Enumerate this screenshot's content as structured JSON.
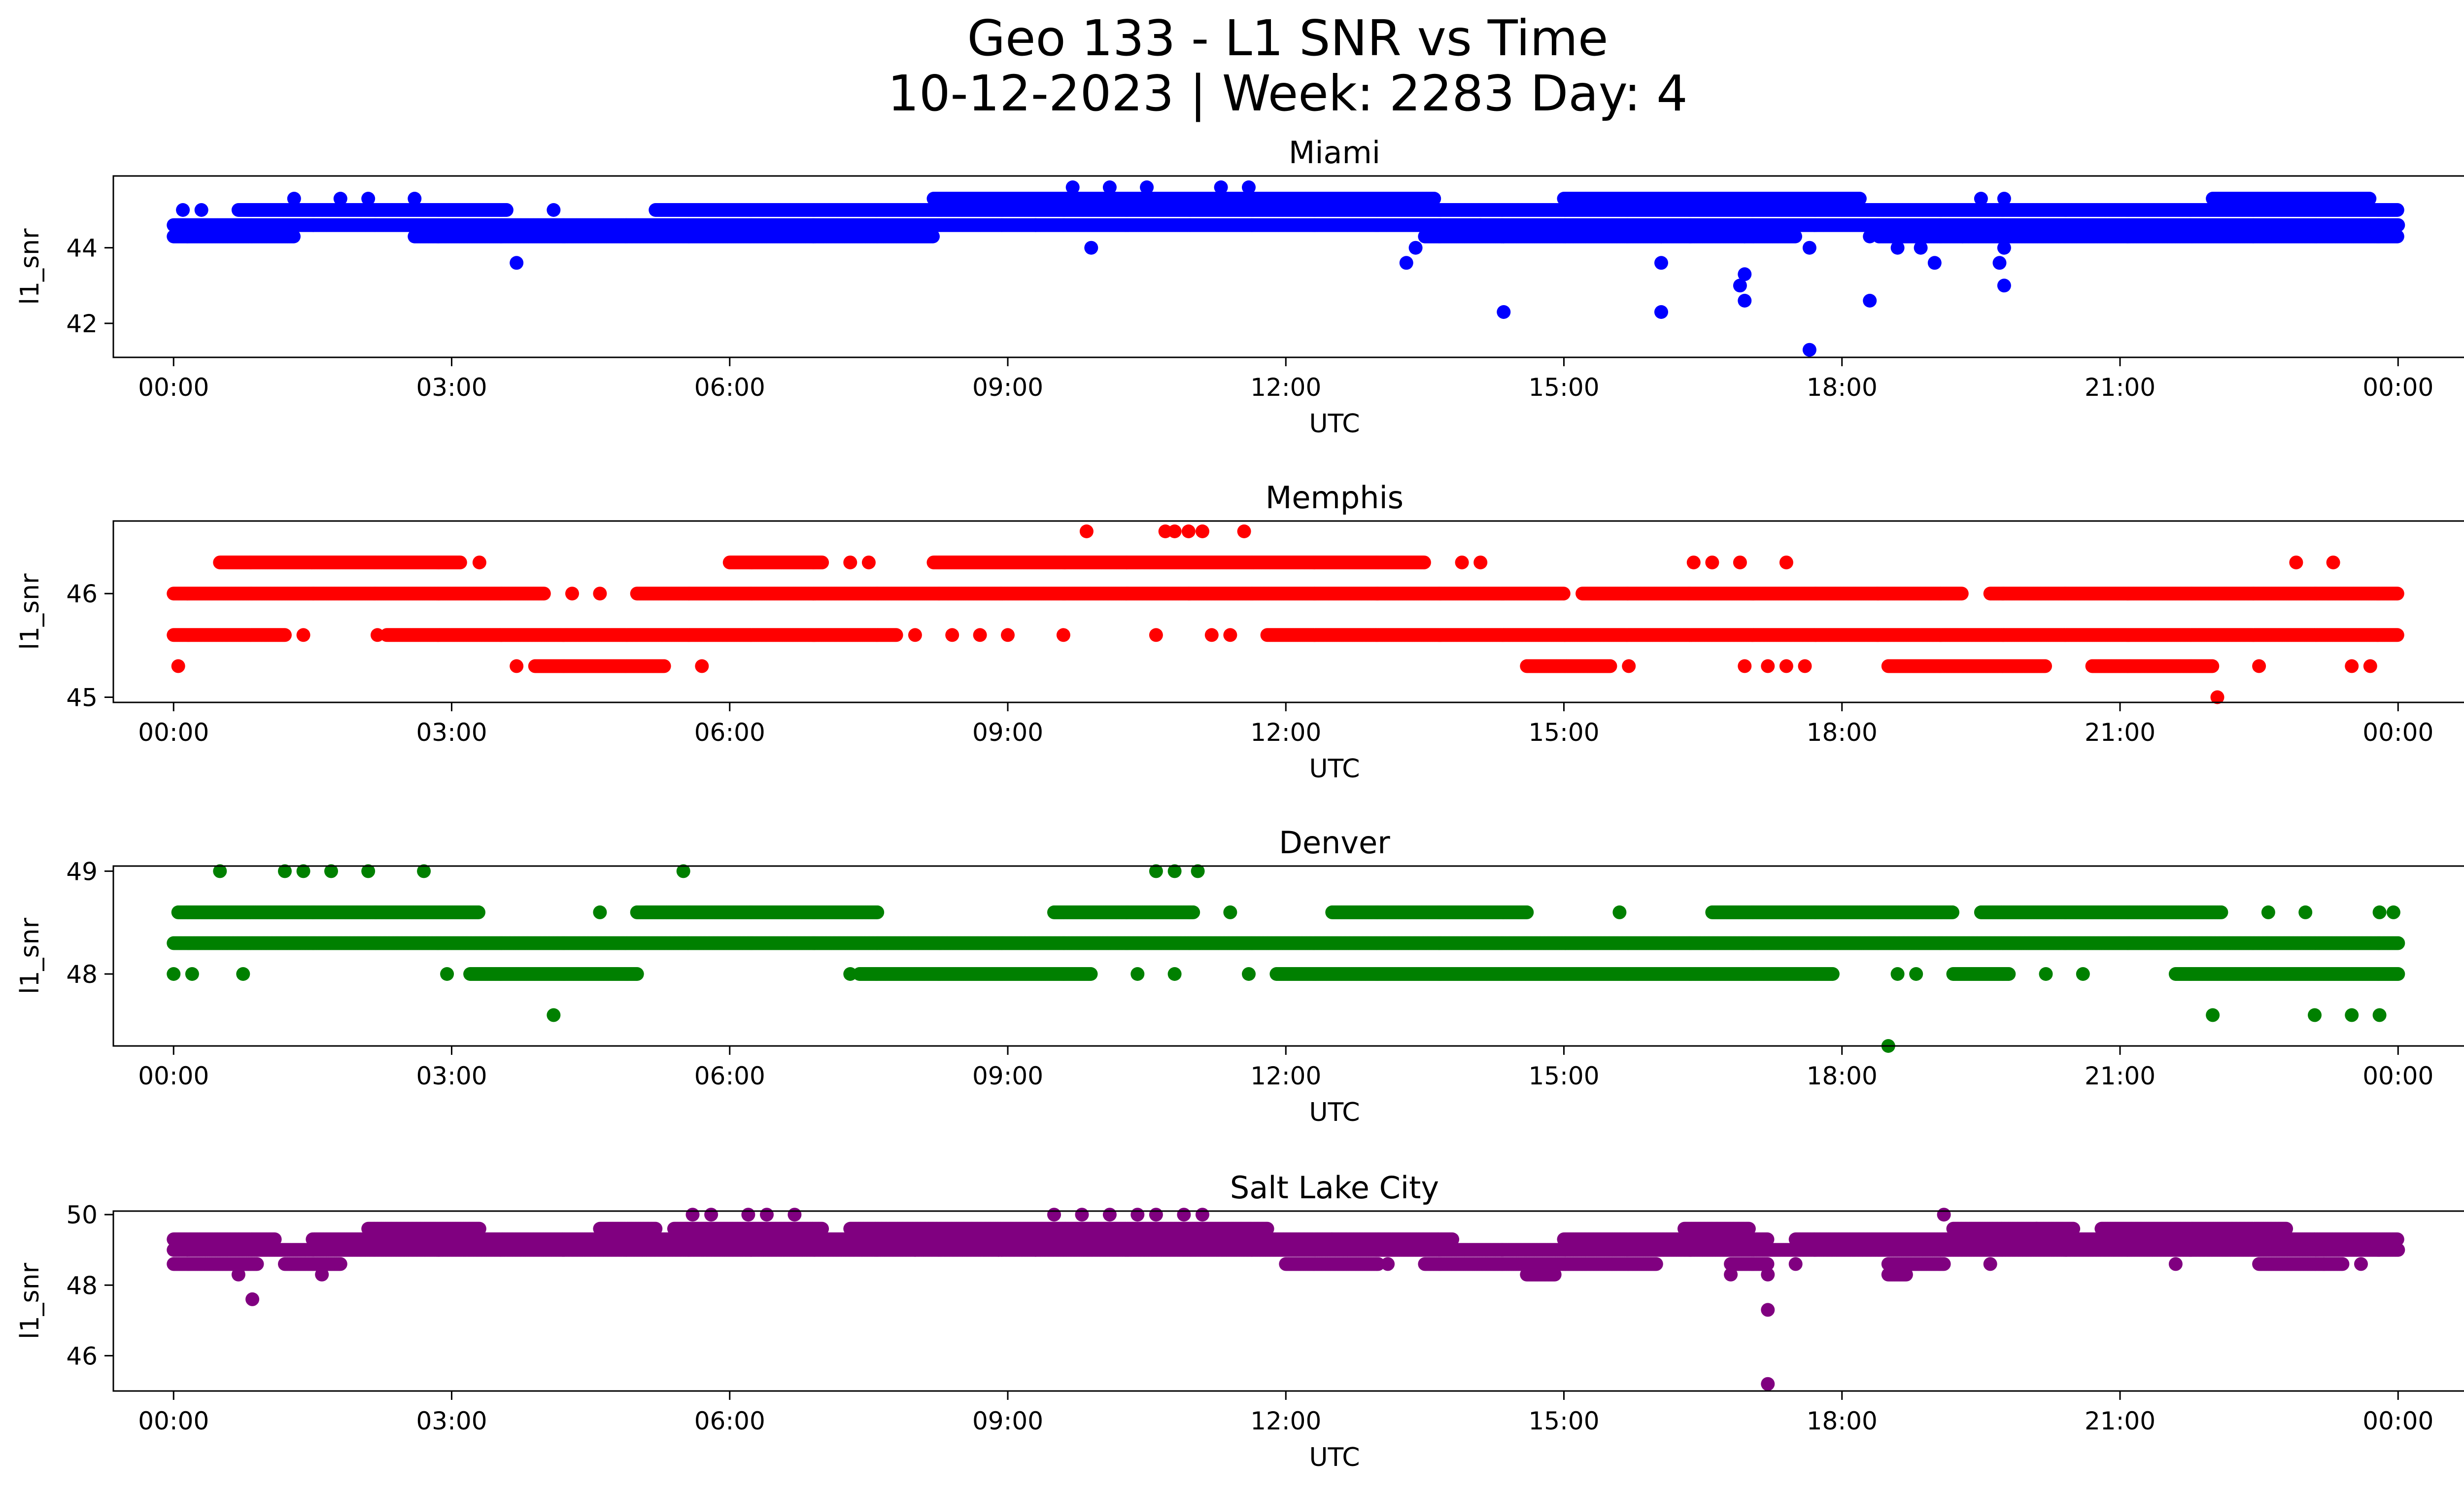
{
  "figure": {
    "title_line1": "Geo 133 - L1 SNR vs Time",
    "title_line2": "10-12-2023 | Week: 2283 Day: 4"
  },
  "chart_data": [
    {
      "type": "scatter",
      "title": "Miami",
      "xlabel": "UTC",
      "ylabel": "l1_snr",
      "color": "#0000ff",
      "x_unit": "hours",
      "xlim": [
        -0.65,
        25.7
      ],
      "ylim": [
        41.1,
        45.9
      ],
      "x_ticks": [
        0,
        3,
        6,
        9,
        12,
        15,
        18,
        21,
        24
      ],
      "x_tick_labels": [
        "00:00",
        "03:00",
        "06:00",
        "09:00",
        "12:00",
        "15:00",
        "18:00",
        "21:00",
        "00:00"
      ],
      "y_ticks": [
        42,
        44
      ],
      "y_tick_labels": [
        "42",
        "44"
      ],
      "bands": [
        {
          "y": 44.3,
          "segments": [
            [
              0,
              1.3
            ],
            [
              2.6,
              8.2
            ],
            [
              13.5,
              17.5
            ],
            [
              18.4,
              24
            ]
          ]
        },
        {
          "y": 44.6,
          "segments": [
            [
              0,
              24
            ]
          ]
        },
        {
          "y": 45.0,
          "segments": [
            [
              0.7,
              3.6
            ],
            [
              5.2,
              24
            ]
          ]
        },
        {
          "y": 45.3,
          "segments": [
            [
              8.2,
              13.6
            ],
            [
              15.0,
              18.2
            ],
            [
              22.0,
              23.7
            ]
          ]
        }
      ],
      "points": [
        {
          "x": 0.1,
          "y": 45.0
        },
        {
          "x": 0.3,
          "y": 45.0
        },
        {
          "x": 1.3,
          "y": 45.3
        },
        {
          "x": 1.8,
          "y": 45.3
        },
        {
          "x": 2.1,
          "y": 45.3
        },
        {
          "x": 2.6,
          "y": 45.3
        },
        {
          "x": 3.7,
          "y": 43.6
        },
        {
          "x": 4.1,
          "y": 45.0
        },
        {
          "x": 9.3,
          "y": 44.6
        },
        {
          "x": 9.7,
          "y": 45.6
        },
        {
          "x": 9.9,
          "y": 44.0
        },
        {
          "x": 10.1,
          "y": 45.6
        },
        {
          "x": 10.5,
          "y": 45.6
        },
        {
          "x": 11.3,
          "y": 45.6
        },
        {
          "x": 11.6,
          "y": 45.6
        },
        {
          "x": 13.3,
          "y": 43.6
        },
        {
          "x": 13.4,
          "y": 44.0
        },
        {
          "x": 14.1,
          "y": 44.6
        },
        {
          "x": 14.35,
          "y": 44.3
        },
        {
          "x": 14.35,
          "y": 42.3
        },
        {
          "x": 16.05,
          "y": 44.3
        },
        {
          "x": 16.05,
          "y": 43.6
        },
        {
          "x": 16.05,
          "y": 42.3
        },
        {
          "x": 16.9,
          "y": 43.0
        },
        {
          "x": 16.95,
          "y": 43.3
        },
        {
          "x": 16.95,
          "y": 42.6
        },
        {
          "x": 16.95,
          "y": 44.3
        },
        {
          "x": 17.65,
          "y": 44.0
        },
        {
          "x": 17.65,
          "y": 41.3
        },
        {
          "x": 18.3,
          "y": 42.6
        },
        {
          "x": 18.3,
          "y": 44.3
        },
        {
          "x": 18.6,
          "y": 44.0
        },
        {
          "x": 18.85,
          "y": 44.0
        },
        {
          "x": 19.0,
          "y": 43.6
        },
        {
          "x": 19.3,
          "y": 44.3
        },
        {
          "x": 19.7,
          "y": 44.3
        },
        {
          "x": 19.7,
          "y": 43.6
        },
        {
          "x": 19.75,
          "y": 43.0
        },
        {
          "x": 19.75,
          "y": 44.0
        },
        {
          "x": 19.75,
          "y": 45.3
        },
        {
          "x": 19.5,
          "y": 45.3
        }
      ]
    },
    {
      "type": "scatter",
      "title": "Memphis",
      "xlabel": "UTC",
      "ylabel": "l1_snr",
      "color": "#ff0000",
      "x_unit": "hours",
      "xlim": [
        -0.65,
        25.7
      ],
      "ylim": [
        44.95,
        46.7
      ],
      "x_ticks": [
        0,
        3,
        6,
        9,
        12,
        15,
        18,
        21,
        24
      ],
      "x_tick_labels": [
        "00:00",
        "03:00",
        "06:00",
        "09:00",
        "12:00",
        "15:00",
        "18:00",
        "21:00",
        "00:00"
      ],
      "y_ticks": [
        45,
        46
      ],
      "y_tick_labels": [
        "45",
        "46"
      ],
      "bands": [
        {
          "y": 46.3,
          "segments": [
            [
              0.5,
              3.1
            ],
            [
              6.0,
              7.0
            ],
            [
              8.2,
              13.5
            ]
          ]
        },
        {
          "y": 46.0,
          "segments": [
            [
              0,
              4.0
            ],
            [
              5.0,
              15.0
            ],
            [
              15.2,
              19.3
            ],
            [
              19.6,
              24
            ]
          ]
        },
        {
          "y": 45.6,
          "segments": [
            [
              0,
              1.2
            ],
            [
              2.3,
              7.8
            ],
            [
              11.8,
              24
            ]
          ]
        },
        {
          "y": 45.3,
          "segments": [
            [
              3.9,
              5.3
            ],
            [
              14.6,
              15.5
            ],
            [
              18.5,
              20.2
            ],
            [
              20.7,
              22.0
            ]
          ]
        }
      ],
      "points": [
        {
          "x": 0.05,
          "y": 45.3
        },
        {
          "x": 1.4,
          "y": 45.6
        },
        {
          "x": 2.2,
          "y": 45.6
        },
        {
          "x": 3.3,
          "y": 46.3
        },
        {
          "x": 3.7,
          "y": 45.3
        },
        {
          "x": 4.3,
          "y": 46.0
        },
        {
          "x": 4.6,
          "y": 46.0
        },
        {
          "x": 5.7,
          "y": 45.3
        },
        {
          "x": 7.3,
          "y": 46.3
        },
        {
          "x": 7.5,
          "y": 46.3
        },
        {
          "x": 8.0,
          "y": 45.6
        },
        {
          "x": 8.4,
          "y": 45.6
        },
        {
          "x": 8.7,
          "y": 45.6
        },
        {
          "x": 9.0,
          "y": 45.6
        },
        {
          "x": 9.6,
          "y": 45.6
        },
        {
          "x": 9.85,
          "y": 46.6
        },
        {
          "x": 10.6,
          "y": 45.6
        },
        {
          "x": 10.7,
          "y": 46.6
        },
        {
          "x": 10.8,
          "y": 46.6
        },
        {
          "x": 10.95,
          "y": 46.6
        },
        {
          "x": 11.1,
          "y": 46.6
        },
        {
          "x": 11.2,
          "y": 45.6
        },
        {
          "x": 11.55,
          "y": 46.6
        },
        {
          "x": 11.4,
          "y": 45.6
        },
        {
          "x": 13.9,
          "y": 46.3
        },
        {
          "x": 14.1,
          "y": 46.3
        },
        {
          "x": 15.7,
          "y": 45.3
        },
        {
          "x": 16.4,
          "y": 46.3
        },
        {
          "x": 16.6,
          "y": 46.3
        },
        {
          "x": 16.9,
          "y": 46.3
        },
        {
          "x": 17.4,
          "y": 46.3
        },
        {
          "x": 16.95,
          "y": 45.3
        },
        {
          "x": 17.2,
          "y": 45.3
        },
        {
          "x": 17.4,
          "y": 45.3
        },
        {
          "x": 17.6,
          "y": 45.3
        },
        {
          "x": 22.05,
          "y": 45.0
        },
        {
          "x": 22.5,
          "y": 45.3
        },
        {
          "x": 22.9,
          "y": 46.3
        },
        {
          "x": 23.3,
          "y": 46.3
        },
        {
          "x": 23.5,
          "y": 45.3
        },
        {
          "x": 23.7,
          "y": 45.3
        }
      ]
    },
    {
      "type": "scatter",
      "title": "Denver",
      "xlabel": "UTC",
      "ylabel": "l1_snr",
      "color": "#008000",
      "x_unit": "hours",
      "xlim": [
        -0.65,
        25.7
      ],
      "ylim": [
        47.3,
        49.05
      ],
      "x_ticks": [
        0,
        3,
        6,
        9,
        12,
        15,
        18,
        21,
        24
      ],
      "x_tick_labels": [
        "00:00",
        "03:00",
        "06:00",
        "09:00",
        "12:00",
        "15:00",
        "18:00",
        "21:00",
        "00:00"
      ],
      "y_ticks": [
        48,
        49
      ],
      "y_tick_labels": [
        "48",
        "49"
      ],
      "bands": [
        {
          "y": 48.6,
          "segments": [
            [
              0.05,
              3.3
            ],
            [
              5.0,
              7.6
            ],
            [
              9.5,
              11.0
            ],
            [
              12.5,
              14.6
            ],
            [
              16.6,
              19.2
            ],
            [
              19.5,
              22.1
            ]
          ]
        },
        {
          "y": 48.3,
          "segments": [
            [
              0,
              24
            ]
          ]
        },
        {
          "y": 48.0,
          "segments": [
            [
              3.2,
              5.0
            ],
            [
              7.4,
              9.9
            ],
            [
              11.9,
              17.9
            ],
            [
              19.2,
              19.8
            ],
            [
              21.6,
              24
            ]
          ]
        }
      ],
      "points": [
        {
          "x": 0.5,
          "y": 49.0
        },
        {
          "x": 1.2,
          "y": 49.0
        },
        {
          "x": 1.4,
          "y": 49.0
        },
        {
          "x": 1.7,
          "y": 49.0
        },
        {
          "x": 2.1,
          "y": 49.0
        },
        {
          "x": 2.7,
          "y": 49.0
        },
        {
          "x": 5.5,
          "y": 49.0
        },
        {
          "x": 10.6,
          "y": 49.0
        },
        {
          "x": 10.8,
          "y": 49.0
        },
        {
          "x": 11.05,
          "y": 49.0
        },
        {
          "x": 0.0,
          "y": 48.0
        },
        {
          "x": 0.2,
          "y": 48.0
        },
        {
          "x": 0.75,
          "y": 48.0
        },
        {
          "x": 2.95,
          "y": 48.0
        },
        {
          "x": 4.1,
          "y": 47.6
        },
        {
          "x": 4.6,
          "y": 48.6
        },
        {
          "x": 7.3,
          "y": 48.0
        },
        {
          "x": 10.4,
          "y": 48.0
        },
        {
          "x": 10.8,
          "y": 48.0
        },
        {
          "x": 11.6,
          "y": 48.0
        },
        {
          "x": 11.4,
          "y": 48.6
        },
        {
          "x": 15.6,
          "y": 48.6
        },
        {
          "x": 18.5,
          "y": 47.3
        },
        {
          "x": 18.6,
          "y": 48.0
        },
        {
          "x": 18.8,
          "y": 48.0
        },
        {
          "x": 20.2,
          "y": 48.0
        },
        {
          "x": 20.6,
          "y": 48.0
        },
        {
          "x": 22.0,
          "y": 47.6
        },
        {
          "x": 23.1,
          "y": 47.6
        },
        {
          "x": 23.5,
          "y": 47.6
        },
        {
          "x": 23.8,
          "y": 47.6
        },
        {
          "x": 22.6,
          "y": 48.6
        },
        {
          "x": 23.0,
          "y": 48.6
        },
        {
          "x": 23.8,
          "y": 48.6
        },
        {
          "x": 23.95,
          "y": 48.6
        }
      ]
    },
    {
      "type": "scatter",
      "title": "Salt Lake City",
      "xlabel": "UTC",
      "ylabel": "l1_snr",
      "color": "#800080",
      "x_unit": "hours",
      "xlim": [
        -0.65,
        25.7
      ],
      "ylim": [
        45.0,
        50.1
      ],
      "x_ticks": [
        0,
        3,
        6,
        9,
        12,
        15,
        18,
        21,
        24
      ],
      "x_tick_labels": [
        "00:00",
        "03:00",
        "06:00",
        "09:00",
        "12:00",
        "15:00",
        "18:00",
        "21:00",
        "00:00"
      ],
      "y_ticks": [
        46,
        48,
        50
      ],
      "y_tick_labels": [
        "46",
        "48",
        "50"
      ],
      "bands": [
        {
          "y": 49.6,
          "segments": [
            [
              2.1,
              3.3
            ],
            [
              4.6,
              5.2
            ],
            [
              5.4,
              7.0
            ],
            [
              7.3,
              11.8
            ],
            [
              16.3,
              17.0
            ],
            [
              19.2,
              20.5
            ],
            [
              20.8,
              22.8
            ]
          ]
        },
        {
          "y": 49.3,
          "segments": [
            [
              0,
              1.1
            ],
            [
              1.5,
              12.5
            ],
            [
              12.5,
              13.8
            ],
            [
              15.0,
              17.2
            ],
            [
              17.5,
              24
            ]
          ]
        },
        {
          "y": 49.0,
          "segments": [
            [
              0,
              24
            ]
          ]
        },
        {
          "y": 48.6,
          "segments": [
            [
              0,
              0.9
            ],
            [
              1.2,
              1.8
            ],
            [
              12.0,
              13.0
            ],
            [
              13.5,
              16.0
            ],
            [
              16.8,
              17.2
            ],
            [
              18.5,
              19.1
            ],
            [
              22.5,
              23.4
            ]
          ]
        },
        {
          "y": 48.3,
          "segments": [
            [
              14.6,
              14.9
            ],
            [
              18.5,
              18.7
            ]
          ]
        }
      ],
      "points": [
        {
          "x": 0.7,
          "y": 48.3
        },
        {
          "x": 0.85,
          "y": 47.6
        },
        {
          "x": 1.6,
          "y": 48.3
        },
        {
          "x": 5.6,
          "y": 50.0
        },
        {
          "x": 5.8,
          "y": 50.0
        },
        {
          "x": 6.2,
          "y": 50.0
        },
        {
          "x": 6.4,
          "y": 50.0
        },
        {
          "x": 6.7,
          "y": 50.0
        },
        {
          "x": 8.0,
          "y": 49.0
        },
        {
          "x": 8.9,
          "y": 49.0
        },
        {
          "x": 9.3,
          "y": 49.0
        },
        {
          "x": 9.5,
          "y": 50.0
        },
        {
          "x": 9.8,
          "y": 50.0
        },
        {
          "x": 10.1,
          "y": 50.0
        },
        {
          "x": 10.4,
          "y": 50.0
        },
        {
          "x": 10.6,
          "y": 50.0
        },
        {
          "x": 10.9,
          "y": 50.0
        },
        {
          "x": 11.1,
          "y": 50.0
        },
        {
          "x": 13.1,
          "y": 48.6
        },
        {
          "x": 16.8,
          "y": 48.3
        },
        {
          "x": 17.2,
          "y": 48.3
        },
        {
          "x": 17.2,
          "y": 47.3
        },
        {
          "x": 17.2,
          "y": 45.2
        },
        {
          "x": 17.5,
          "y": 48.6
        },
        {
          "x": 19.1,
          "y": 50.0
        },
        {
          "x": 19.6,
          "y": 48.6
        },
        {
          "x": 20.1,
          "y": 49.6
        },
        {
          "x": 21.6,
          "y": 48.6
        },
        {
          "x": 23.2,
          "y": 48.6
        },
        {
          "x": 23.6,
          "y": 48.6
        }
      ]
    }
  ]
}
